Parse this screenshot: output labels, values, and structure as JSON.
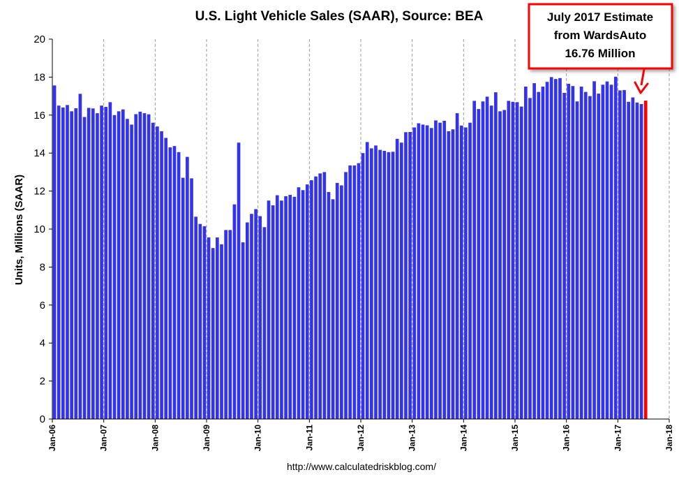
{
  "chart_data": {
    "type": "bar",
    "title": "U.S. Light Vehicle Sales (SAAR), Source: BEA",
    "ylabel": "Units, Millions (SAAR)",
    "xlabel": "",
    "ylim": [
      0,
      20
    ],
    "yticks": [
      0,
      2,
      4,
      6,
      8,
      10,
      12,
      14,
      16,
      18,
      20
    ],
    "xtick_labels": [
      "Jan-06",
      "Jan-07",
      "Jan-08",
      "Jan-09",
      "Jan-10",
      "Jan-11",
      "Jan-12",
      "Jan-13",
      "Jan-14",
      "Jan-15",
      "Jan-16",
      "Jan-17",
      "Jan-18"
    ],
    "grid": "dashed vertical gridlines",
    "start_month": "Jan-06",
    "months_per_tick": 12,
    "total_slots": 144,
    "series": [
      {
        "color": "#3333ee",
        "values": [
          17.56,
          16.5,
          16.4,
          16.53,
          16.2,
          16.36,
          17.12,
          15.9,
          16.38,
          16.35,
          16.1,
          16.5,
          16.43,
          16.68,
          16.0,
          16.2,
          16.3,
          15.8,
          15.5,
          16.05,
          16.18,
          16.1,
          16.04,
          15.6,
          15.4,
          15.15,
          14.8,
          14.3,
          14.37,
          14.05,
          12.7,
          13.8,
          12.67,
          10.65,
          10.27,
          10.15,
          9.56,
          9.0,
          9.56,
          9.2,
          9.95,
          9.95,
          11.3,
          14.55,
          9.3,
          10.35,
          10.8,
          11.05,
          10.68,
          10.1,
          11.5,
          11.25,
          11.78,
          11.5,
          11.73,
          11.8,
          11.7,
          12.2,
          12.05,
          12.35,
          12.57,
          12.77,
          12.93,
          13.0,
          11.95,
          11.57,
          12.43,
          12.3,
          13.0,
          13.35,
          13.35,
          13.47,
          14.0,
          14.58,
          14.25,
          14.4,
          14.17,
          14.12,
          14.05,
          14.07,
          14.75,
          14.55,
          15.1,
          15.11,
          15.35,
          15.57,
          15.5,
          15.46,
          15.32,
          15.72,
          15.6,
          15.7,
          15.15,
          15.25,
          16.1,
          15.45,
          15.35,
          15.6,
          16.75,
          16.32,
          16.72,
          16.97,
          16.5,
          17.2,
          16.2,
          16.27,
          16.75,
          16.7,
          16.68,
          16.45,
          17.5,
          16.9,
          17.68,
          17.22,
          17.5,
          17.75,
          18.0,
          17.9,
          17.95,
          17.17,
          17.65,
          17.53,
          16.72,
          17.5,
          17.22,
          17.0,
          17.78,
          17.13,
          17.6,
          17.77,
          17.6,
          18.02,
          17.3,
          17.32,
          16.7,
          16.93,
          16.66,
          16.58
        ]
      },
      {
        "color": "#ff0000",
        "start_index": 138,
        "values": [
          16.76
        ]
      }
    ]
  },
  "callout": {
    "lines": [
      "July 2017 Estimate",
      "from WardsAuto",
      "16.76 Million"
    ],
    "border_color": "#ff0000",
    "arrow_color": "#ff0000"
  },
  "source_url": "http://www.calculatedriskblog.com/"
}
